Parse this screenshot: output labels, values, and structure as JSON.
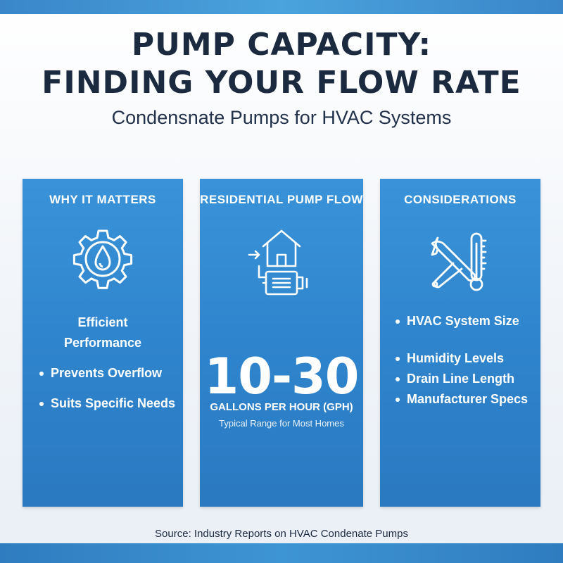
{
  "header": {
    "title_line1": "PUMP CAPACITY:",
    "title_line2": "FINDING YOUR FLOW RATE",
    "subtitle": "Condensnate Pumps for HVAC Systems"
  },
  "panels": [
    {
      "heading": "WHY IT MATTERS",
      "icon": "gear-water-drop-icon",
      "lead_line1": "Efficient",
      "lead_line2": "Performance",
      "bullets": [
        "Prevents Overflow",
        "Suits Specific Needs"
      ]
    },
    {
      "heading": "RESIDENTIAL PUMP FLOW",
      "icon": "house-pump-icon",
      "value": "10-30",
      "unit": "GALLONS PER HOUR (GPH)",
      "note": "Typical Range for Most Homes"
    },
    {
      "heading": "CONSIDERATIONS",
      "icon": "wrench-thermometer-icon",
      "bullets": [
        "HVAC System Size",
        "Humidity Levels",
        "Drain Line Length",
        "Manufacturer Specs"
      ]
    }
  ],
  "footer": {
    "source": "Source: Industry Reports on HVAC Condenate Pumps"
  },
  "colors": {
    "title_text": "#1c2a40",
    "panel_blue": "#2f85cd",
    "accent_bar": "#3e95d3"
  }
}
